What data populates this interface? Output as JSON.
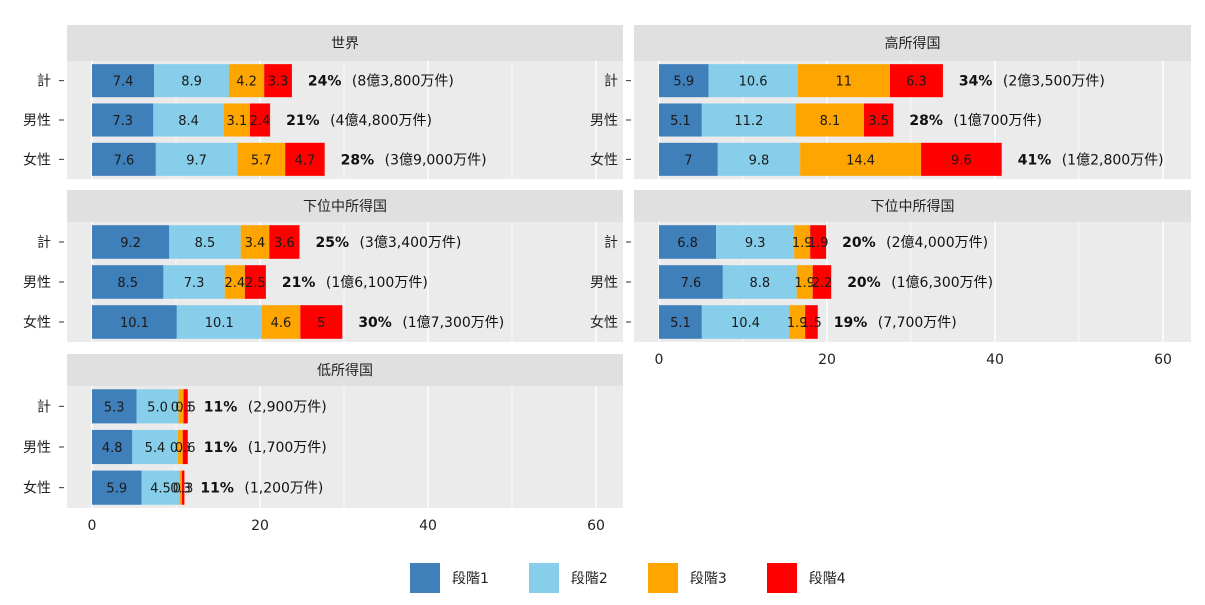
{
  "chart_data": {
    "type": "bar",
    "orientation": "horizontal",
    "stacked": true,
    "x_ticks": [
      0,
      20,
      40,
      60
    ],
    "xlim": [
      0,
      62
    ],
    "grid": true,
    "legend_position": "bottom",
    "series_names": [
      "段階1",
      "段階2",
      "段階3",
      "段階4"
    ],
    "series_colors": [
      "#3F7FBA",
      "#87CEEB",
      "#FFA500",
      "#FF0000"
    ],
    "panels": [
      {
        "title": "世界",
        "categories": [
          "計",
          "男性",
          "女性"
        ],
        "series": [
          {
            "name": "段階1",
            "values": [
              7.4,
              7.3,
              7.6
            ]
          },
          {
            "name": "段階2",
            "values": [
              8.9,
              8.4,
              9.7
            ]
          },
          {
            "name": "段階3",
            "values": [
              4.2,
              3.1,
              5.7
            ]
          },
          {
            "name": "段階4",
            "values": [
              3.3,
              2.4,
              4.7
            ]
          }
        ],
        "totals": [
          "24%",
          "21%",
          "28%"
        ],
        "counts": [
          "(8億3,800万件)",
          "(4億4,800万件)",
          "(3億9,000万件)"
        ]
      },
      {
        "title": "高所得国",
        "categories": [
          "計",
          "男性",
          "女性"
        ],
        "series": [
          {
            "name": "段階1",
            "values": [
              5.9,
              5.1,
              7
            ]
          },
          {
            "name": "段階2",
            "values": [
              10.6,
              11.2,
              9.8
            ]
          },
          {
            "name": "段階3",
            "values": [
              11,
              8.1,
              14.4
            ]
          },
          {
            "name": "段階4",
            "values": [
              6.3,
              3.5,
              9.6
            ]
          }
        ],
        "totals": [
          "34%",
          "28%",
          "41%"
        ],
        "counts": [
          "(2億3,500万件)",
          "(1億700万件)",
          "(1億2,800万件)"
        ]
      },
      {
        "title": "下位中所得国",
        "categories": [
          "計",
          "男性",
          "女性"
        ],
        "series": [
          {
            "name": "段階1",
            "values": [
              9.2,
              8.5,
              10.1
            ]
          },
          {
            "name": "段階2",
            "values": [
              8.5,
              7.3,
              10.1
            ]
          },
          {
            "name": "段階3",
            "values": [
              3.4,
              2.4,
              4.6
            ]
          },
          {
            "name": "段階4",
            "values": [
              3.6,
              2.5,
              5
            ]
          }
        ],
        "totals": [
          "25%",
          "21%",
          "30%"
        ],
        "counts": [
          "(3億3,400万件)",
          "(1億6,100万件)",
          "(1億7,300万件)"
        ]
      },
      {
        "title": "下位中所得国",
        "categories": [
          "計",
          "男性",
          "女性"
        ],
        "series": [
          {
            "name": "段階1",
            "values": [
              6.8,
              7.6,
              5.1
            ]
          },
          {
            "name": "段階2",
            "values": [
              9.3,
              8.8,
              10.4
            ]
          },
          {
            "name": "段階3",
            "values": [
              1.9,
              1.9,
              1.9
            ]
          },
          {
            "name": "段階4",
            "values": [
              1.9,
              2.2,
              1.5
            ]
          }
        ],
        "totals": [
          "20%",
          "20%",
          "19%"
        ],
        "counts": [
          "(2億4,000万件)",
          "(1億6,300万件)",
          "(7,700万件)"
        ]
      },
      {
        "title": "低所得国",
        "categories": [
          "計",
          "男性",
          "女性"
        ],
        "series": [
          {
            "name": "段階1",
            "values": [
              5.3,
              4.8,
              5.9
            ]
          },
          {
            "name": "段階2",
            "values": [
              5.0,
              5.4,
              4.5
            ]
          },
          {
            "name": "段階3",
            "values": [
              0.6,
              0.6,
              0.3
            ]
          },
          {
            "name": "段階4",
            "values": [
              0.5,
              0.6,
              0.3
            ]
          }
        ],
        "value_labels": [
          [
            "5.3",
            "5.0",
            "0.6",
            "0.5"
          ],
          [
            "4.8",
            "5.4",
            "0.6",
            "0.6"
          ],
          [
            "5.9",
            "4.5",
            "0.3",
            "0.3"
          ]
        ],
        "totals": [
          "11%",
          "11%",
          "11%"
        ],
        "counts": [
          "(2,900万件)",
          "(1,700万件)",
          "(1,200万件)"
        ]
      }
    ]
  }
}
